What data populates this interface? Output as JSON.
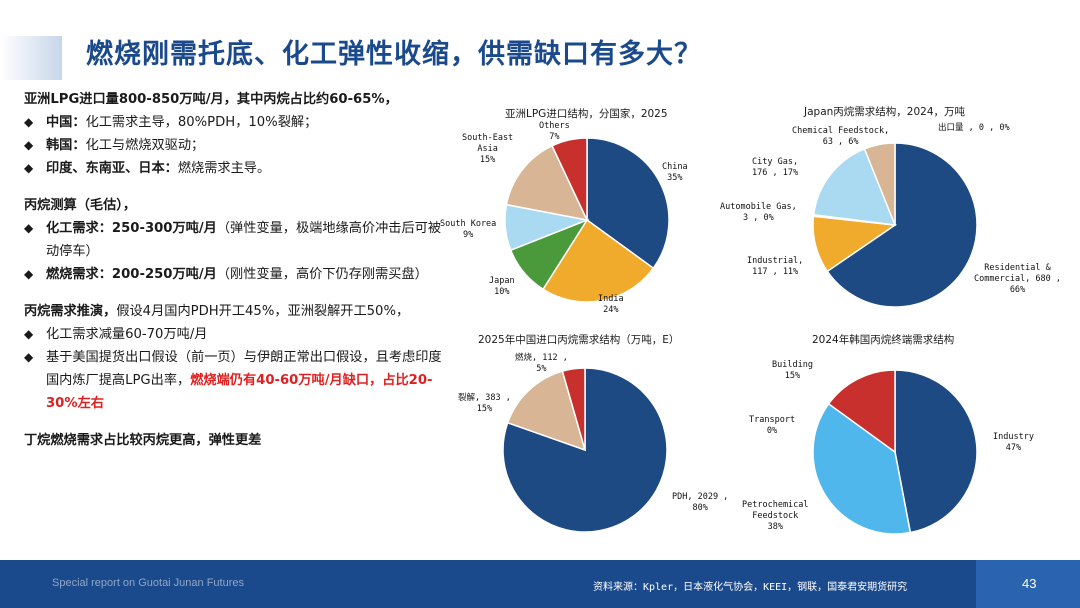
{
  "header": {
    "title": "燃烧刚需托底、化工弹性收缩，供需缺口有多大？"
  },
  "left": {
    "s1_head": "亚洲LPG进口量800-850万吨/月，其中丙烷占比约60-65%，",
    "s1_b1_label": "中国：",
    "s1_b1_text": "化工需求主导，80%PDH，10%裂解；",
    "s1_b2_label": "韩国：",
    "s1_b2_text": "化工与燃烧双驱动；",
    "s1_b3_label": "印度、东南亚、日本：",
    "s1_b3_text": "燃烧需求主导。",
    "s2_head": "丙烷测算（毛估），",
    "s2_b1_label": "化工需求：250-300万吨/月",
    "s2_b1_text": "（弹性变量，极端地缘高价冲击后可被动停车）",
    "s2_b2_label": "燃烧需求：200-250万吨/月",
    "s2_b2_text": "（刚性变量，高价下仍存刚需买盘）",
    "s3_head_bold": "丙烷需求推演，",
    "s3_head_rest": "假设4月国内PDH开工45%，亚洲裂解开工50%，",
    "s3_b1_text": "化工需求减量60-70万吨/月",
    "s3_b2_text": "基于美国提货出口假设（前一页）与伊朗正常出口假设，且考虑印度国内炼厂提高LPG出率，",
    "s3_b2_red": "燃烧端仍有40-60万吨/月缺口，占比20-30%左右",
    "s4_head": "丁烷燃烧需求占比较丙烷更高，弹性更差"
  },
  "chart_data": [
    {
      "type": "pie",
      "title": "亚洲LPG进口结构，分国家，2025",
      "labels": [
        "China",
        "India",
        "Japan",
        "South Korea",
        "South-East Asia",
        "Others"
      ],
      "values": [
        35,
        24,
        10,
        9,
        15,
        7
      ],
      "label_text": [
        "China\n35%",
        "India\n24%",
        "Japan\n10%",
        "South Korea\n9%",
        "South-East\nAsia\n15%",
        "Others\n7%"
      ],
      "colors": [
        "#1d4a82",
        "#f0aa2c",
        "#4a9a3c",
        "#a9daf2",
        "#d8b594",
        "#c8302e"
      ]
    },
    {
      "type": "pie",
      "title": "Japan丙烷需求结构，2024，万吨",
      "labels": [
        "Residential & Commercial",
        "Industrial",
        "Automobile Gas",
        "City Gas",
        "Chemical Feedstock",
        "出口量"
      ],
      "values": [
        680,
        117,
        3,
        176,
        63,
        0
      ],
      "label_text": [
        "Residential &\nCommercial, 680 ,\n66%",
        "Industrial,\n117 , 11%",
        "Automobile Gas,\n3 , 0%",
        "City Gas,\n176 , 17%",
        "Chemical Feedstock,\n63 , 6%",
        "出口量 , 0 , 0%"
      ],
      "colors": [
        "#1d4a82",
        "#f0aa2c",
        "#4a9a3c",
        "#a9daf2",
        "#d8b594",
        "#c8302e"
      ]
    },
    {
      "type": "pie",
      "title": "2025年中国进口丙烷需求结构（万吨，E）",
      "labels": [
        "PDH",
        "裂解",
        "燃烧"
      ],
      "values": [
        2029,
        383,
        112
      ],
      "label_text": [
        "PDH, 2029 ,\n80%",
        "裂解, 383 ,\n15%",
        "燃烧, 112 ,\n5%"
      ],
      "colors": [
        "#1d4a82",
        "#d8b594",
        "#c8302e"
      ]
    },
    {
      "type": "pie",
      "title": "2024年韩国丙烷终端需求结构",
      "labels": [
        "Industry",
        "Petrochemical Feedstock",
        "Transport",
        "Building"
      ],
      "values": [
        47,
        38,
        0,
        15
      ],
      "label_text": [
        "Industry\n47%",
        "Petrochemical\nFeedstock\n38%",
        "Transport\n0%",
        "Building\n15%"
      ],
      "colors": [
        "#1d4a82",
        "#4fb7ec",
        "#f0aa2c",
        "#c8302e"
      ]
    }
  ],
  "footer": {
    "left": "Special report on Guotai Junan Futures",
    "source": "资料来源：Kpler，日本液化气协会，KEEI，钢联，国泰君安期货研究",
    "page": "43"
  }
}
